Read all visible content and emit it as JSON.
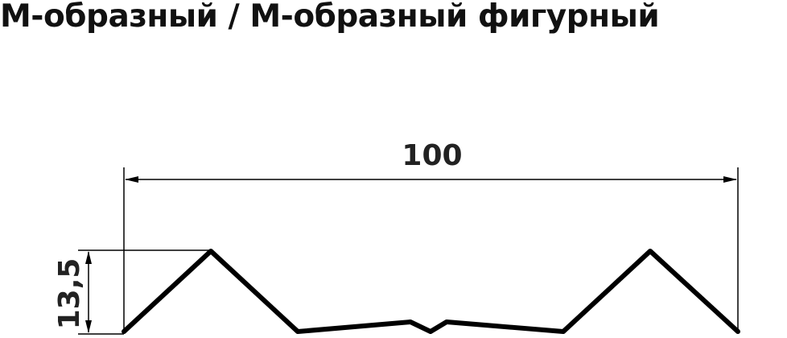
{
  "title": "М-образный / М-образный фигурный",
  "dimensions": {
    "width_label": "100",
    "height_label": "13,5"
  }
}
